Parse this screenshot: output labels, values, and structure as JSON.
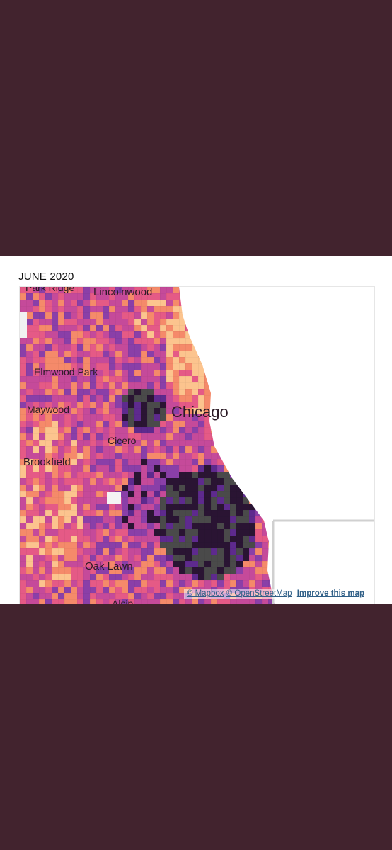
{
  "panel": {
    "title": "JUNE 2020"
  },
  "map": {
    "labels": {
      "park_ridge": "Park Ridge",
      "lincolnwood": "Lincolnwood",
      "elmwood_park": "Elmwood Park",
      "maywood": "Maywood",
      "chicago": "Chicago",
      "cicero": "Cicero",
      "brookfield": "Brookfield",
      "oak_lawn": "Oak Lawn",
      "alsip": "Alsip"
    },
    "colors": {
      "light": "#fcc48e",
      "orange": "#f58a6a",
      "pink": "#e55a86",
      "magenta": "#c54a9a",
      "purple": "#8a3fa8",
      "violet": "#5e2a8e",
      "dark": "#2a1433",
      "gray": "#4a4a4a",
      "lake": "#ffffff"
    }
  },
  "attribution": {
    "mapbox": "© Mapbox",
    "osm": "© OpenStreetMap",
    "improve": "Improve this map"
  }
}
